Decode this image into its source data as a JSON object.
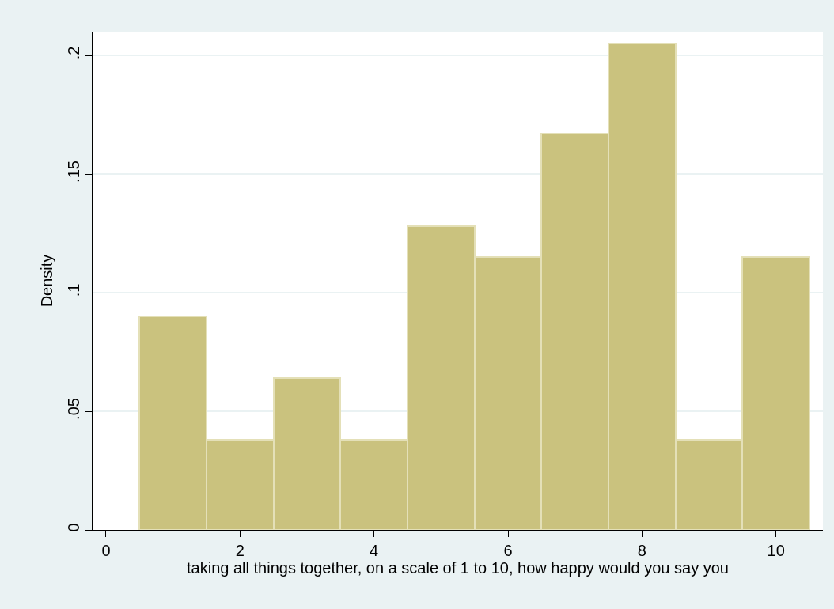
{
  "chart_data": {
    "type": "histogram",
    "xlabel": "taking all things together, on a scale of 1 to 10, how happy would you say you",
    "ylabel": "Density",
    "bins": [
      0.5,
      1.5,
      2.5,
      3.5,
      4.5,
      5.5,
      6.5,
      7.5,
      8.5,
      9.5,
      10.5
    ],
    "values": [
      0.09,
      0.038,
      0.064,
      0.038,
      0.128,
      0.115,
      0.167,
      0.205,
      0.038,
      0.115
    ],
    "color": "#cac27e",
    "xlim": [
      -0.2,
      10.7
    ],
    "xticks": [
      0,
      2,
      4,
      6,
      8,
      10
    ],
    "ylim": [
      0,
      0.21
    ],
    "yticks": [
      0,
      {
        "value": 0.05,
        "label": ".05"
      },
      {
        "value": 0.1,
        "label": ".1"
      },
      {
        "value": 0.15,
        "label": ".15"
      },
      {
        "value": 0.2,
        "label": ".2"
      }
    ],
    "grid": "y"
  }
}
